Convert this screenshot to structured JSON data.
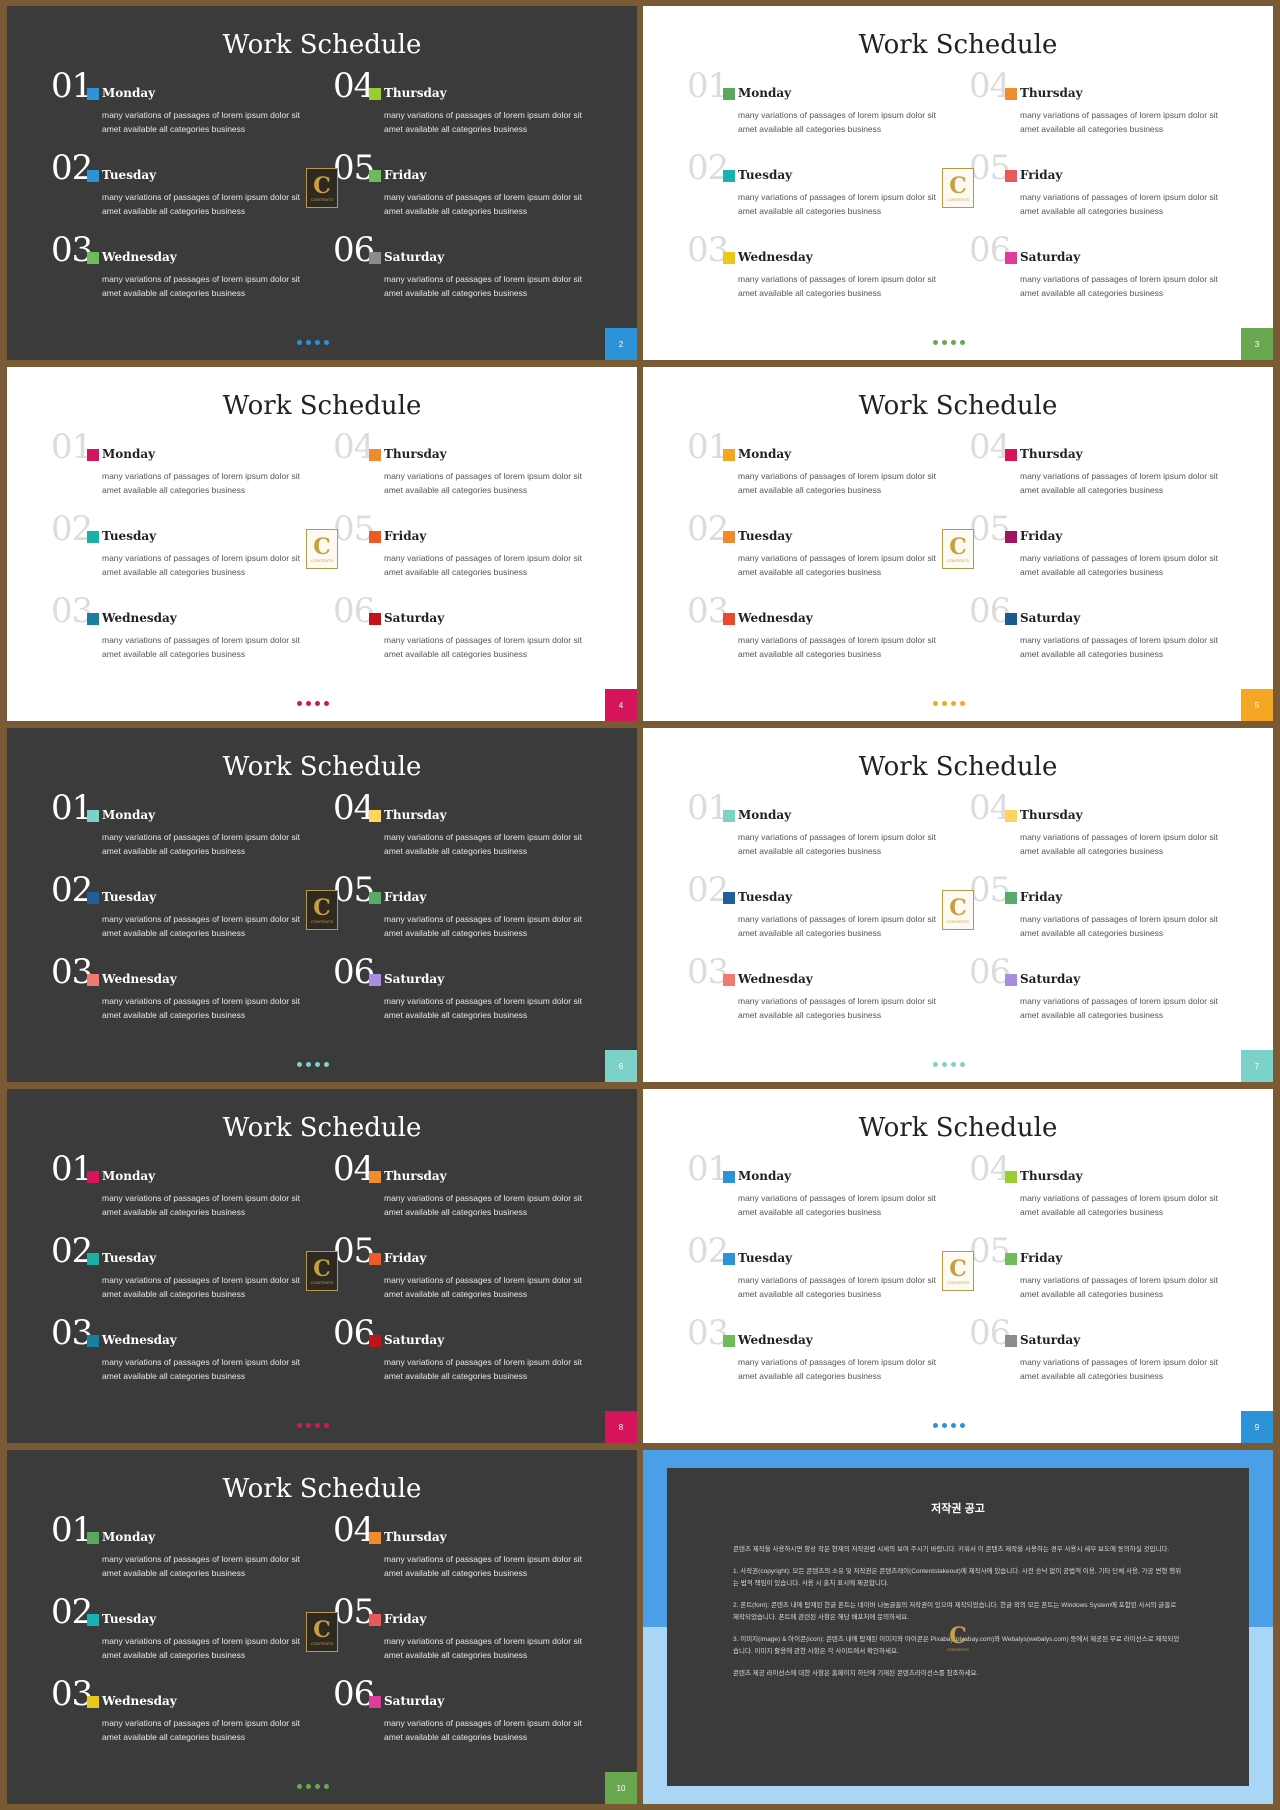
{
  "schedule_title": "Work Schedule",
  "numbers": [
    "01",
    "02",
    "03",
    "04",
    "05",
    "06"
  ],
  "days": [
    "Monday",
    "Tuesday",
    "Wednesday",
    "Thursday",
    "Friday",
    "Saturday"
  ],
  "description": "many variations of passages of lorem ipsum dolor sit amet available all categories business",
  "logo": {
    "letter": "C",
    "text": "CONTENTS"
  },
  "slides": [
    {
      "page": "2",
      "theme": "dark",
      "accent": "#2c93d8",
      "colors": [
        "#2c93d8",
        "#2c93d8",
        "#6dbb5a",
        "#9acd32",
        "#6dbb5a",
        "#8c8c8c"
      ]
    },
    {
      "page": "3",
      "theme": "light",
      "accent": "#6aa84f",
      "colors": [
        "#5aa85a",
        "#15b3b3",
        "#e8c81a",
        "#f08c2e",
        "#e85a5a",
        "#e03c9b"
      ]
    },
    {
      "page": "4",
      "theme": "light",
      "accent": "#d6145c",
      "colors": [
        "#d6145c",
        "#1bb0a6",
        "#1b7fa0",
        "#f08c2e",
        "#f05a28",
        "#c0141a"
      ]
    },
    {
      "page": "5",
      "theme": "light",
      "accent": "#f5a623",
      "colors": [
        "#f5a623",
        "#f08c2e",
        "#e84a2c",
        "#d6145c",
        "#a3145c",
        "#1b5a8c"
      ]
    },
    {
      "page": "6",
      "theme": "dark",
      "accent": "#7cd1c9",
      "colors": [
        "#7cd1c9",
        "#1f5f9a",
        "#f07a72",
        "#ffd45a",
        "#5aaa6a",
        "#a98be0"
      ]
    },
    {
      "page": "7",
      "theme": "light",
      "accent": "#7cd1c9",
      "colors": [
        "#7cd1c9",
        "#1f5f9a",
        "#f07a72",
        "#ffd45a",
        "#5aaa6a",
        "#a98be0"
      ]
    },
    {
      "page": "8",
      "theme": "dark",
      "accent": "#d6145c",
      "colors": [
        "#d6145c",
        "#1bb0a6",
        "#1b7fa0",
        "#f08c2e",
        "#f05a28",
        "#c0141a"
      ]
    },
    {
      "page": "9",
      "theme": "light",
      "accent": "#2c93d8",
      "colors": [
        "#2c93d8",
        "#2c93d8",
        "#6dbb5a",
        "#9acd32",
        "#6dbb5a",
        "#8c8c8c"
      ]
    },
    {
      "page": "10",
      "theme": "dark",
      "accent": "#6aa84f",
      "colors": [
        "#5aa85a",
        "#15b3b3",
        "#e8c81a",
        "#f08c2e",
        "#e85a5a",
        "#e03c9b"
      ]
    }
  ],
  "copyright": {
    "title": "저작권 공고",
    "paragraphs": [
      "콘텐츠 제작을 사용하시면 항상 작은 현재의 저작권법 시세의 보여 주시기 바랍니다. 키워서 이 콘텐츠 제작을 사용하는 경우 사용시 세부 보도에 동의하실 것입니다.",
      "1. 사작권(copyright): 모든 콘텐츠의 소유 및 저작권은 콘텐츠레이(Contentstakeout)에 제작사에 있습니다. 사전 승낙 없이 공법적 이용, 기타 단체 사용, 가공 변형 행위는 법적 책임이 있습니다. 사용 시 출처 표시에 제공합니다.",
      "2. 폰트(font): 콘텐츠 내에 탑재된 한글 폰트는 네이버 나눔글꼴의 저작권이 있으며 제작되었습니다. 한글 외의 모든 폰트는 Windows System에 포함된 사서의 글꼴로 제작되었습니다. 폰트에 관련된 사항은 해당 배포처에 문의하세요.",
      "3. 이미지(image) & 아이콘(icon): 콘텐츠 내에 탑재된 이미지와 아이콘은 Pixabay(pixabay.com)와 Webalys(webalys.com) 등에서 제공된 무료 라이선스로 제작되었습니다. 이미지 활용에 관한 사항은 각 사이트에서 확인하세요.",
      "콘텐츠 제공 라이선스에 대한 사항은 홈페이지 하단에 기재된 콘텐츠라이선스를 참조하세요."
    ]
  }
}
